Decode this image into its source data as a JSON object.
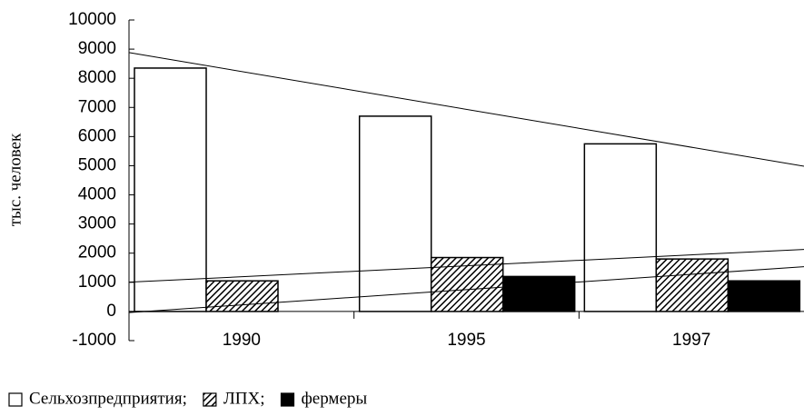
{
  "chart_data": {
    "type": "bar",
    "y_label": "тыс. человек",
    "categories": [
      "1990",
      "1995",
      "1997"
    ],
    "series": [
      {
        "name": "Сельхозпредприятия;",
        "color": "#ffffff",
        "values": [
          8350,
          6700,
          5750
        ]
      },
      {
        "name": "ЛПХ;",
        "color": "#000000",
        "hatch": true,
        "values": [
          1050,
          1850,
          1800
        ]
      },
      {
        "name": "фермеры",
        "color": "#000000",
        "values": [
          0,
          1200,
          1050
        ]
      }
    ],
    "ylim": [
      -1000,
      10000
    ],
    "yticks": [
      -1000,
      0,
      1000,
      2000,
      3000,
      4000,
      5000,
      6000,
      7000,
      8000,
      9000,
      10000
    ],
    "trendlines": true,
    "legend": "bottom"
  }
}
